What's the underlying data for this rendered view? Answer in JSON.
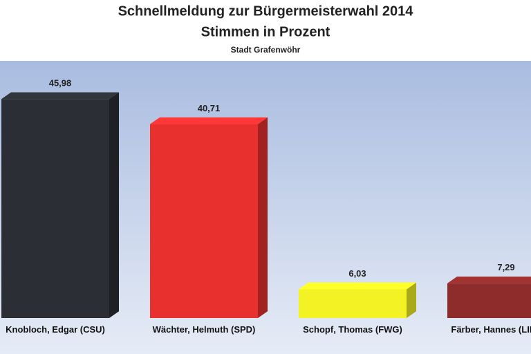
{
  "chart_data": {
    "type": "bar3d",
    "title": "Schnellmeldung zur Bürgermeisterwahl 2014",
    "subtitle": "Stimmen in Prozent",
    "caption": "Stadt Grafenwöhr",
    "categories": [
      "Knobloch, Edgar (CSU)",
      "Wächter, Helmuth (SPD)",
      "Schopf, Thomas (FWG)",
      "Färber, Hannes (LINKE)"
    ],
    "values": [
      45.98,
      40.71,
      6.03,
      7.29
    ],
    "value_labels": [
      "45,98",
      "40,71",
      "6,03",
      "7,29"
    ],
    "colors": [
      "#2b2e34",
      "#e8302f",
      "#f2f224",
      "#8e2c2b"
    ],
    "ylim": [
      0,
      54
    ]
  }
}
